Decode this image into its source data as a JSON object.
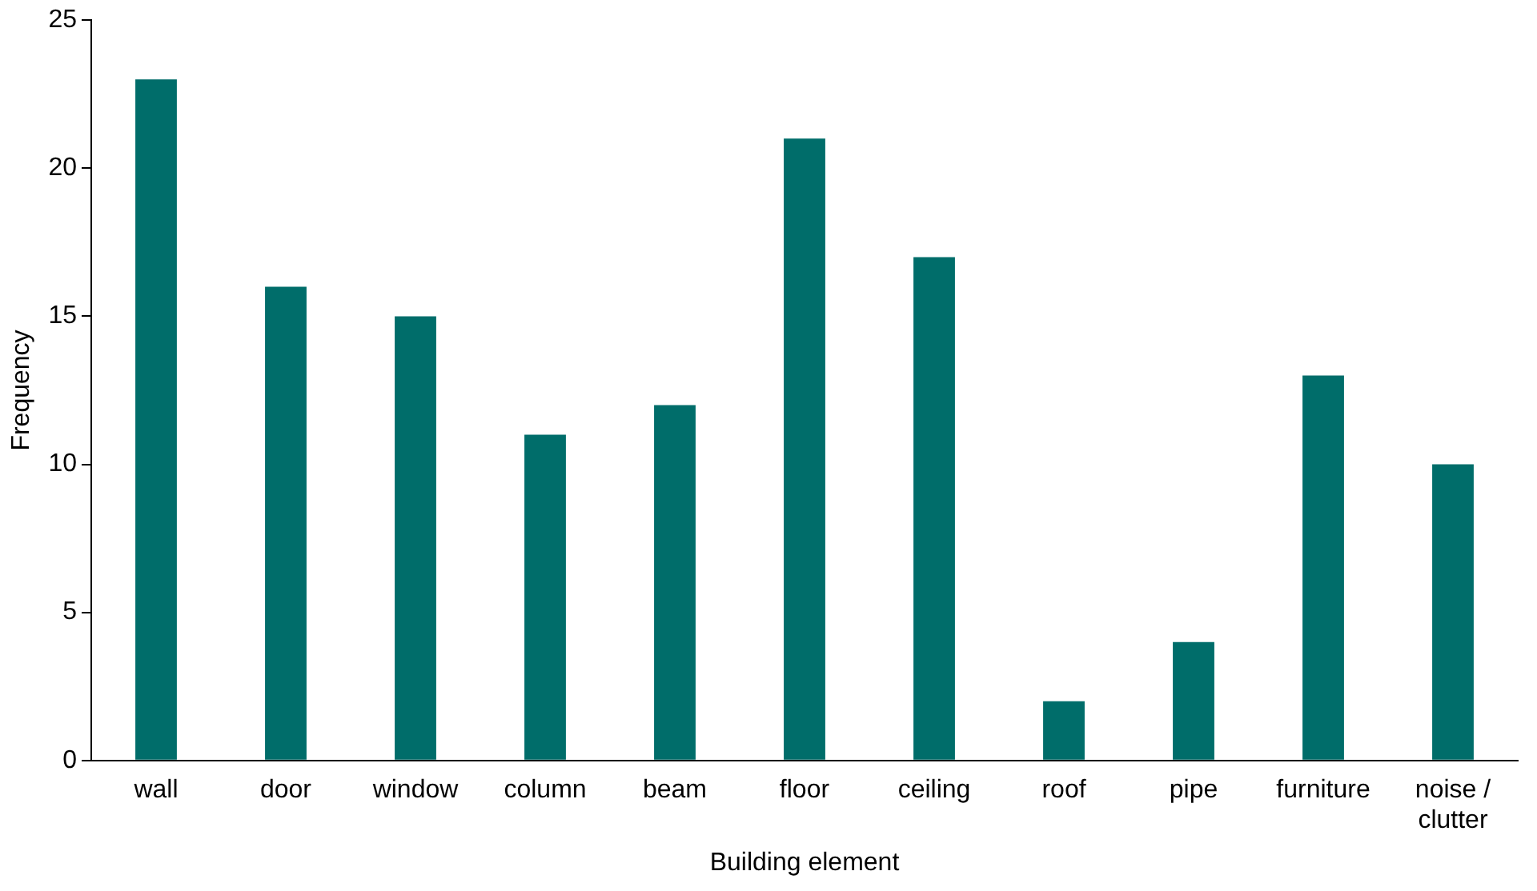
{
  "chart_data": {
    "type": "bar",
    "xlabel": "Building element",
    "ylabel": "Frequency",
    "categories": [
      "wall",
      "door",
      "window",
      "column",
      "beam",
      "floor",
      "ceiling",
      "roof",
      "pipe",
      "furniture",
      "noise / clutter"
    ],
    "values": [
      23,
      16,
      15,
      11,
      12,
      21,
      17,
      2,
      4,
      13,
      10
    ],
    "color": "#006d6a",
    "ylim": [
      0,
      25
    ],
    "yticks": [
      0,
      5,
      10,
      15,
      20,
      25
    ],
    "grid": false,
    "legend": false
  }
}
